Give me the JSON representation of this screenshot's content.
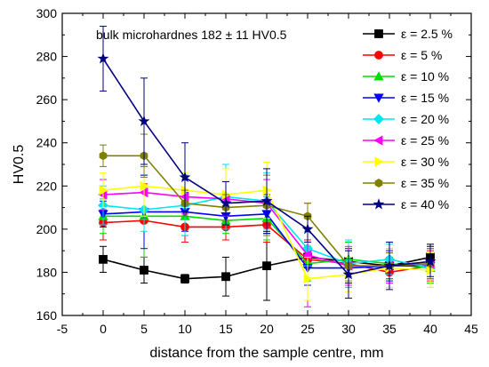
{
  "chart_data": {
    "type": "line",
    "title": "",
    "xlabel": "distance from the sample centre, mm",
    "ylabel": "HV0.5",
    "xlim": [
      -5,
      45
    ],
    "ylim": [
      160,
      300
    ],
    "xticks": [
      -5,
      0,
      5,
      10,
      15,
      20,
      25,
      30,
      35,
      40,
      45
    ],
    "yticks": [
      160,
      180,
      200,
      220,
      240,
      260,
      280,
      300
    ],
    "annotation": "bulk microhardnes 182 ± 11 HV0.5",
    "legend_position": "top-right",
    "x": [
      0,
      5,
      10,
      15,
      20,
      25,
      30,
      35,
      40
    ],
    "series": [
      {
        "name": "ε = 2.5 %",
        "color": "#000000",
        "marker": "square",
        "values": [
          186,
          181,
          177,
          178,
          183,
          187,
          185,
          183,
          187
        ],
        "errors": [
          6,
          6,
          2,
          9,
          16,
          5,
          10,
          6,
          6
        ]
      },
      {
        "name": "ε = 5 %",
        "color": "#ff0000",
        "marker": "circle",
        "values": [
          203,
          204,
          201,
          201,
          202,
          186,
          184,
          180,
          183
        ],
        "errors": [
          8,
          17,
          7,
          6,
          8,
          9,
          10,
          7,
          7
        ]
      },
      {
        "name": "ε = 10 %",
        "color": "#00dd00",
        "marker": "triangle-up",
        "values": [
          206,
          206,
          206,
          204,
          205,
          184,
          186,
          184,
          182
        ],
        "errors": [
          8,
          19,
          9,
          6,
          10,
          8,
          8,
          7,
          7
        ]
      },
      {
        "name": "ε = 15 %",
        "color": "#0000ff",
        "marker": "triangle-down",
        "values": [
          207,
          208,
          208,
          206,
          207,
          182,
          182,
          183,
          183
        ],
        "errors": [
          6,
          17,
          9,
          6,
          9,
          8,
          9,
          7,
          6
        ]
      },
      {
        "name": "ε = 20 %",
        "color": "#00e5ee",
        "marker": "diamond",
        "values": [
          211,
          209,
          211,
          215,
          213,
          191,
          184,
          186,
          182
        ],
        "errors": [
          9,
          10,
          14,
          15,
          13,
          8,
          11,
          7,
          9
        ]
      },
      {
        "name": "ε = 25 %",
        "color": "#ff00ff",
        "marker": "triangle-left",
        "values": [
          216,
          217,
          215,
          214,
          212,
          188,
          183,
          183,
          184
        ],
        "errors": [
          7,
          12,
          8,
          8,
          11,
          24,
          9,
          8,
          7
        ]
      },
      {
        "name": "ε = 30 %",
        "color": "#ffff00",
        "marker": "triangle-right",
        "values": [
          218,
          220,
          218,
          216,
          218,
          177,
          179,
          182,
          181
        ],
        "errors": [
          8,
          14,
          8,
          12,
          13,
          10,
          8,
          9,
          8
        ]
      },
      {
        "name": "ε = 35 %",
        "color": "#808000",
        "marker": "hexagon",
        "values": [
          234,
          234,
          212,
          210,
          211,
          206,
          183,
          183,
          184
        ],
        "errors": [
          5,
          10,
          6,
          6,
          14,
          6,
          7,
          6,
          7
        ]
      },
      {
        "name": "ε = 40 %",
        "color": "#000080",
        "marker": "star",
        "values": [
          279,
          250,
          224,
          212,
          213,
          200,
          179,
          183,
          185
        ],
        "errors": [
          15,
          20,
          16,
          10,
          15,
          6,
          11,
          11,
          7
        ]
      }
    ]
  }
}
